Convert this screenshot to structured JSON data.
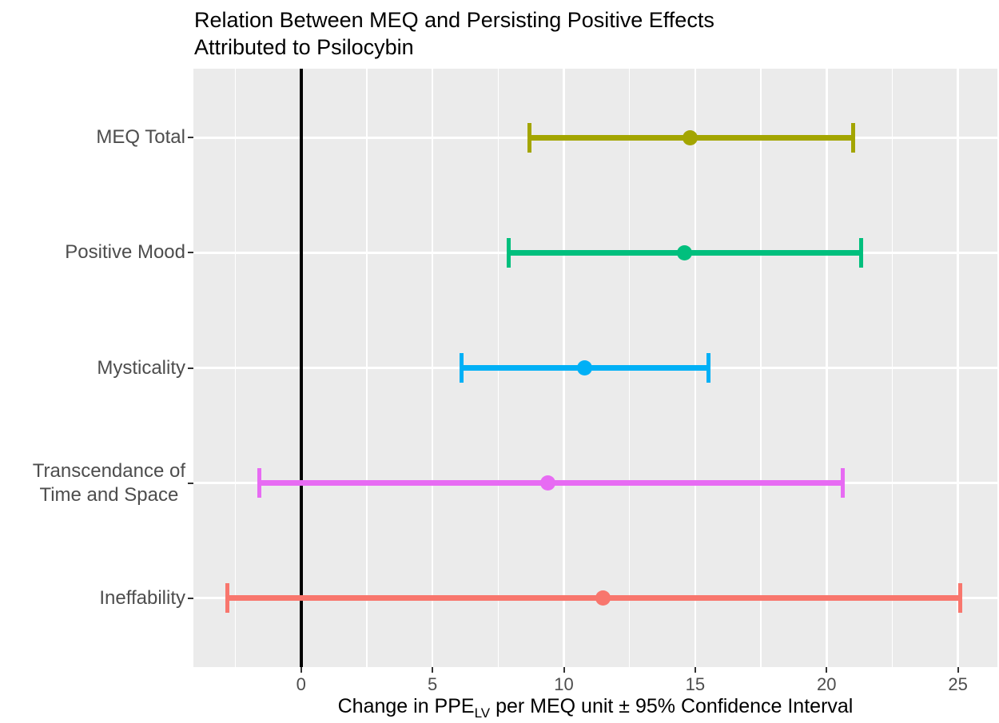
{
  "title_lines": [
    "Relation Between MEQ and Persisting Positive Effects",
    "Attributed to Psilocybin"
  ],
  "x_axis": {
    "label_prefix": "Change in PPE",
    "label_subscript": "LV",
    "label_suffix": " per MEQ unit ± 95% Confidence Interval",
    "tick_labels": [
      "0",
      "5",
      "10",
      "15",
      "20",
      "25"
    ]
  },
  "chart_data": {
    "type": "scatter",
    "subtype": "horizontal-errorbar-forest-plot",
    "title": "Relation Between MEQ and Persisting Positive Effects Attributed to Psilocybin",
    "xlabel": "Change in PPE_LV per MEQ unit ± 95% Confidence Interval",
    "ylabel": "",
    "legend": "none",
    "grid": true,
    "categories": [
      "MEQ Total",
      "Positive Mood",
      "Mysticality",
      "Transcendance of\nTime and Space",
      "Ineffability"
    ],
    "points": [
      {
        "label": "MEQ Total",
        "estimate": 14.8,
        "ci_low": 8.7,
        "ci_high": 21.0,
        "color": "#A3A500"
      },
      {
        "label": "Positive Mood",
        "estimate": 14.6,
        "ci_low": 7.9,
        "ci_high": 21.3,
        "color": "#00BF7D"
      },
      {
        "label": "Mysticality",
        "estimate": 10.8,
        "ci_low": 6.1,
        "ci_high": 15.5,
        "color": "#00B0F6"
      },
      {
        "label": "Transcendance of\nTime and Space",
        "estimate": 9.4,
        "ci_low": -1.6,
        "ci_high": 20.6,
        "color": "#E76BF3"
      },
      {
        "label": "Ineffability",
        "estimate": 11.5,
        "ci_low": -2.8,
        "ci_high": 25.1,
        "color": "#F8766D"
      }
    ],
    "x_major_ticks": [
      0,
      5,
      10,
      15,
      20,
      25
    ],
    "x_minor_ticks": [
      -2.5,
      2.5,
      7.5,
      12.5,
      17.5,
      22.5
    ],
    "xlim": [
      -4.1,
      26.5
    ],
    "reference_line_x": 0,
    "panel_bg": "#EBEBEB",
    "grid_color": "#FFFFFF",
    "ref_line_color": "#000000",
    "text_color": "#4D4D4D"
  }
}
